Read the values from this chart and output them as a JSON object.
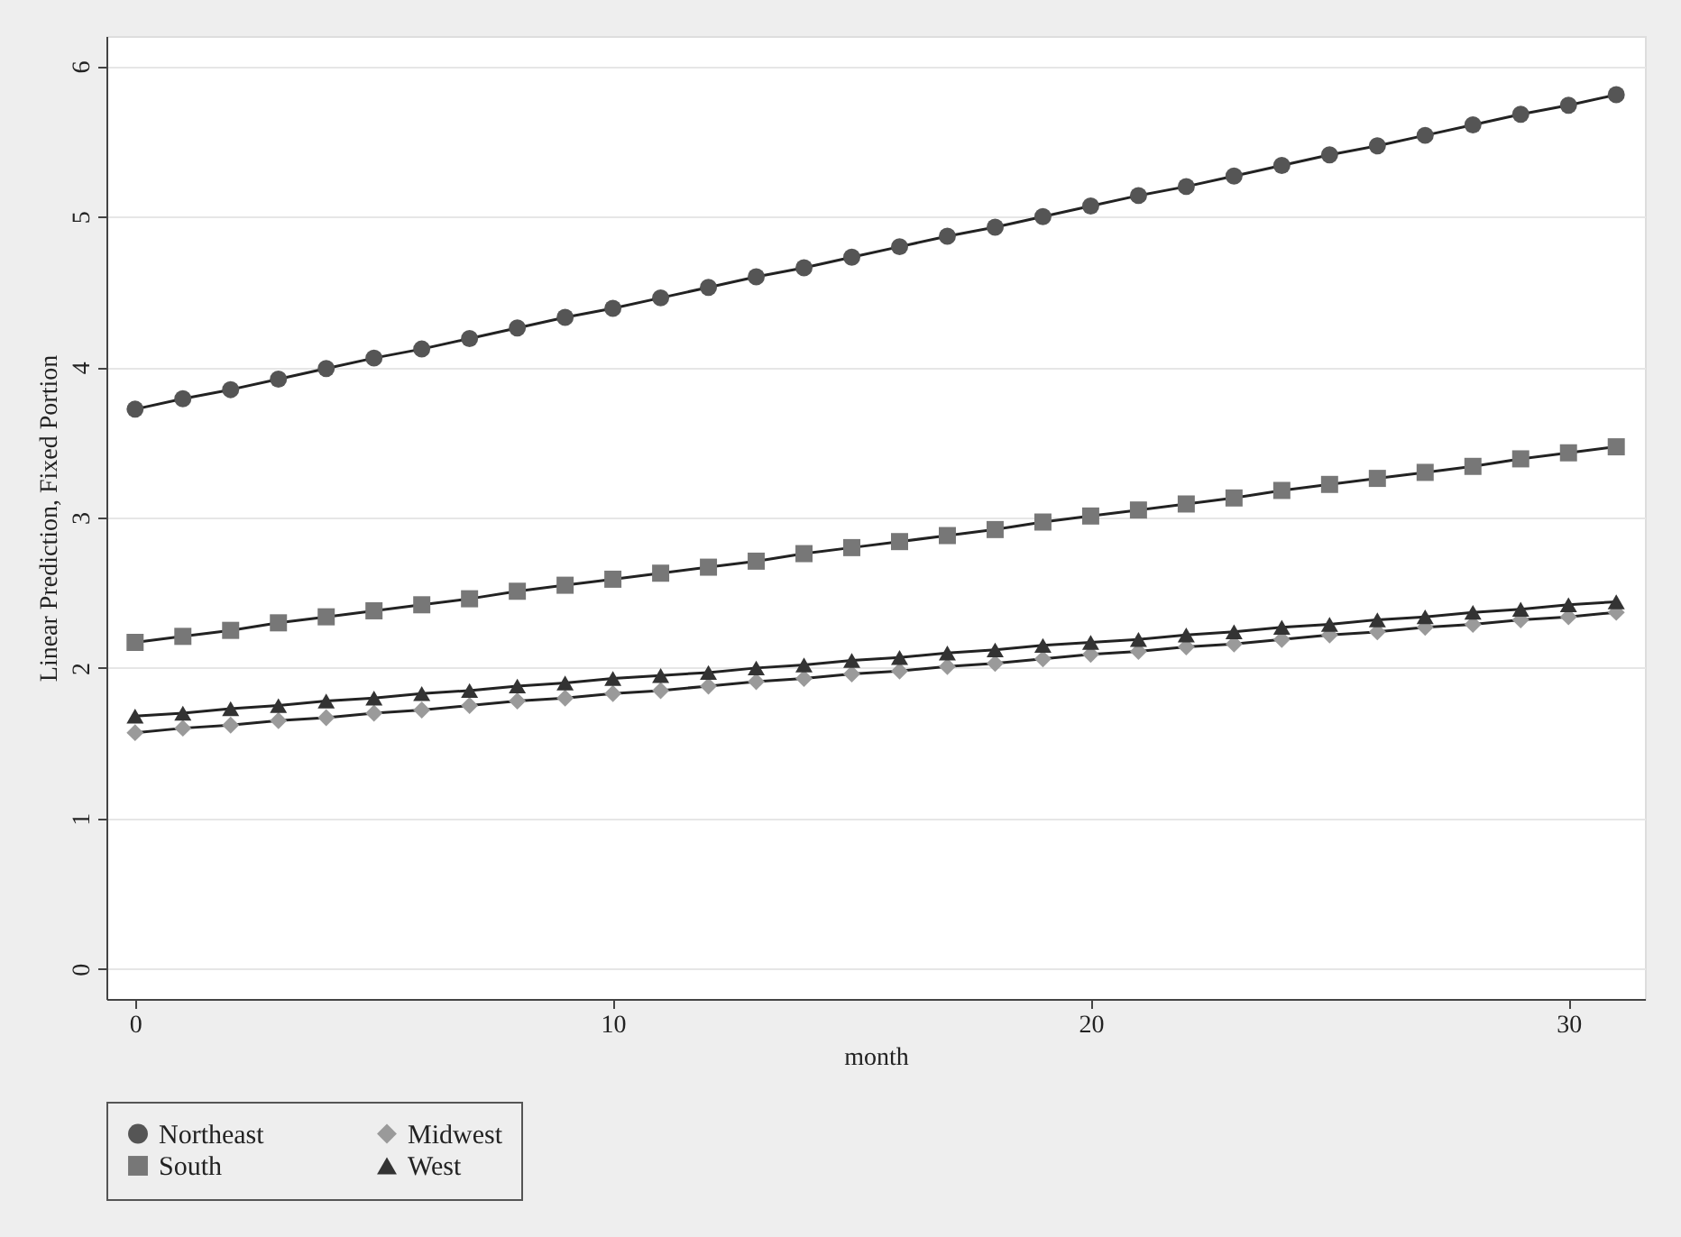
{
  "chart_data": {
    "type": "line",
    "xlabel": "month",
    "ylabel": "Linear Prediction, Fixed Portion",
    "x": [
      0,
      1,
      2,
      3,
      4,
      5,
      6,
      7,
      8,
      9,
      10,
      11,
      12,
      13,
      14,
      15,
      16,
      17,
      18,
      19,
      20,
      21,
      22,
      23,
      24,
      25,
      26,
      27,
      28,
      29,
      30,
      31
    ],
    "series": [
      {
        "name": "Northeast",
        "color": "#555555",
        "marker": "circle",
        "values": [
          3.72,
          3.79,
          3.85,
          3.92,
          3.99,
          4.06,
          4.12,
          4.19,
          4.26,
          4.33,
          4.39,
          4.46,
          4.53,
          4.6,
          4.66,
          4.73,
          4.8,
          4.87,
          4.93,
          5.0,
          5.07,
          5.14,
          5.2,
          5.27,
          5.34,
          5.41,
          5.47,
          5.54,
          5.61,
          5.68,
          5.74,
          5.81
        ]
      },
      {
        "name": "Midwest",
        "color": "#9a9a9a",
        "marker": "diamond",
        "values": [
          1.57,
          1.6,
          1.62,
          1.65,
          1.67,
          1.7,
          1.72,
          1.75,
          1.78,
          1.8,
          1.83,
          1.85,
          1.88,
          1.91,
          1.93,
          1.96,
          1.98,
          2.01,
          2.03,
          2.06,
          2.09,
          2.11,
          2.14,
          2.16,
          2.19,
          2.22,
          2.24,
          2.27,
          2.29,
          2.32,
          2.34,
          2.37
        ]
      },
      {
        "name": "South",
        "color": "#777777",
        "marker": "square",
        "values": [
          2.17,
          2.21,
          2.25,
          2.3,
          2.34,
          2.38,
          2.42,
          2.46,
          2.51,
          2.55,
          2.59,
          2.63,
          2.67,
          2.71,
          2.76,
          2.8,
          2.84,
          2.88,
          2.92,
          2.97,
          3.01,
          3.05,
          3.09,
          3.13,
          3.18,
          3.22,
          3.26,
          3.3,
          3.34,
          3.39,
          3.43,
          3.47
        ]
      },
      {
        "name": "West",
        "color": "#333333",
        "marker": "triangle",
        "values": [
          1.68,
          1.7,
          1.73,
          1.75,
          1.78,
          1.8,
          1.83,
          1.85,
          1.88,
          1.9,
          1.93,
          1.95,
          1.97,
          2.0,
          2.02,
          2.05,
          2.07,
          2.1,
          2.12,
          2.15,
          2.17,
          2.19,
          2.22,
          2.24,
          2.27,
          2.29,
          2.32,
          2.34,
          2.37,
          2.39,
          2.42,
          2.44
        ]
      }
    ],
    "xlim": [
      -0.6,
      31.6
    ],
    "xticks": [
      0,
      10,
      20,
      30
    ],
    "ylim": [
      -0.2,
      6.2
    ],
    "yticks": [
      0,
      1,
      2,
      3,
      4,
      5,
      6
    ],
    "grid": "y",
    "legend": "bottom",
    "line_style": "solid"
  }
}
